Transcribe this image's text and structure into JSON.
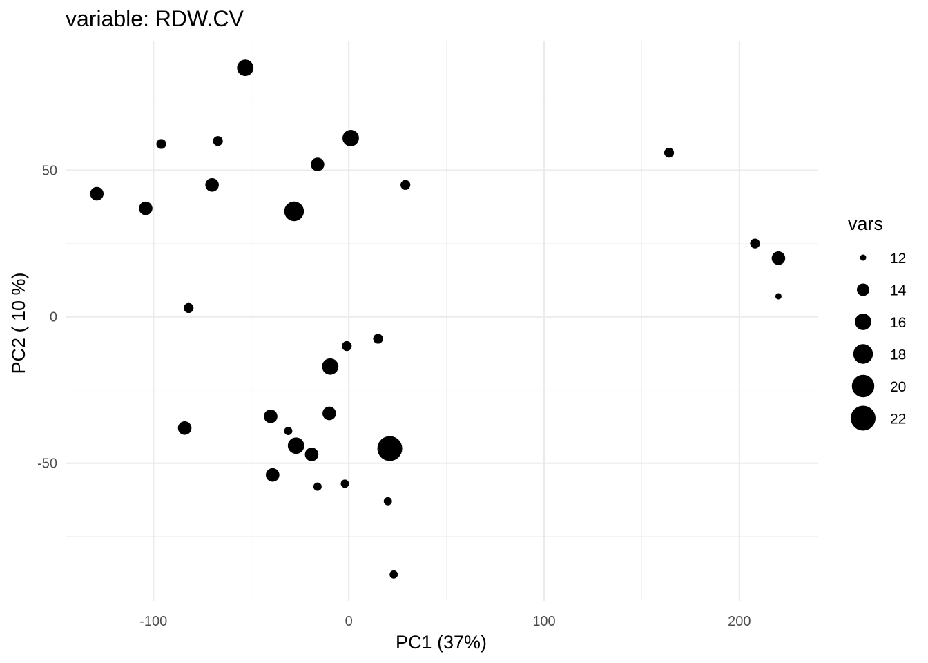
{
  "chart_data": {
    "type": "scatter",
    "title": "variable: RDW.CV",
    "xlabel": "PC1 (37%)",
    "ylabel": "PC2 ( 10 %)",
    "xlim": [
      -145,
      240
    ],
    "ylim": [
      -97,
      94
    ],
    "x_ticks": [
      -100,
      0,
      100,
      200
    ],
    "x_tick_labels": [
      "-100",
      "0",
      "100",
      "200"
    ],
    "y_ticks": [
      -50,
      0,
      50
    ],
    "y_tick_labels": [
      "-50",
      "0",
      "50"
    ],
    "x_minor_ticks": [
      -50,
      50,
      150
    ],
    "y_minor_ticks": [
      -75,
      -25,
      25,
      75
    ],
    "grid": true,
    "legend_position": "right",
    "size_legend": {
      "title": "vars",
      "values": [
        12,
        14,
        16,
        18,
        20,
        22
      ],
      "labels": [
        "12",
        "14",
        "16",
        "18",
        "20",
        "22"
      ]
    },
    "point_color": "#000000",
    "points": [
      {
        "x": -53,
        "y": 85,
        "size": 16
      },
      {
        "x": -96,
        "y": 59,
        "size": 13
      },
      {
        "x": -67,
        "y": 60,
        "size": 13
      },
      {
        "x": 1,
        "y": 61,
        "size": 16
      },
      {
        "x": -16,
        "y": 52,
        "size": 14.5
      },
      {
        "x": -129,
        "y": 42,
        "size": 14.5
      },
      {
        "x": -70,
        "y": 45,
        "size": 14.5
      },
      {
        "x": -104,
        "y": 37,
        "size": 14.5
      },
      {
        "x": -28,
        "y": 36,
        "size": 18
      },
      {
        "x": 29,
        "y": 45,
        "size": 13
      },
      {
        "x": 164,
        "y": 56,
        "size": 13
      },
      {
        "x": 208,
        "y": 25,
        "size": 13
      },
      {
        "x": 220,
        "y": 20,
        "size": 14.5
      },
      {
        "x": 220,
        "y": 7,
        "size": 11
      },
      {
        "x": -82,
        "y": 3,
        "size": 13
      },
      {
        "x": 15,
        "y": -7.5,
        "size": 13
      },
      {
        "x": -1,
        "y": -10,
        "size": 13
      },
      {
        "x": -9.5,
        "y": -17,
        "size": 16
      },
      {
        "x": -10,
        "y": -33,
        "size": 14.5
      },
      {
        "x": -40,
        "y": -34,
        "size": 14.5
      },
      {
        "x": -84,
        "y": -38,
        "size": 14.5
      },
      {
        "x": -31,
        "y": -39,
        "size": 12.5
      },
      {
        "x": -27,
        "y": -44,
        "size": 16
      },
      {
        "x": -19,
        "y": -47,
        "size": 14.5
      },
      {
        "x": 21,
        "y": -45,
        "size": 22
      },
      {
        "x": -39,
        "y": -54,
        "size": 14.5
      },
      {
        "x": -16,
        "y": -58,
        "size": 12.5
      },
      {
        "x": -2,
        "y": -57,
        "size": 12.5
      },
      {
        "x": 20,
        "y": -63,
        "size": 12.5
      },
      {
        "x": 23,
        "y": -88,
        "size": 12.5
      }
    ]
  }
}
